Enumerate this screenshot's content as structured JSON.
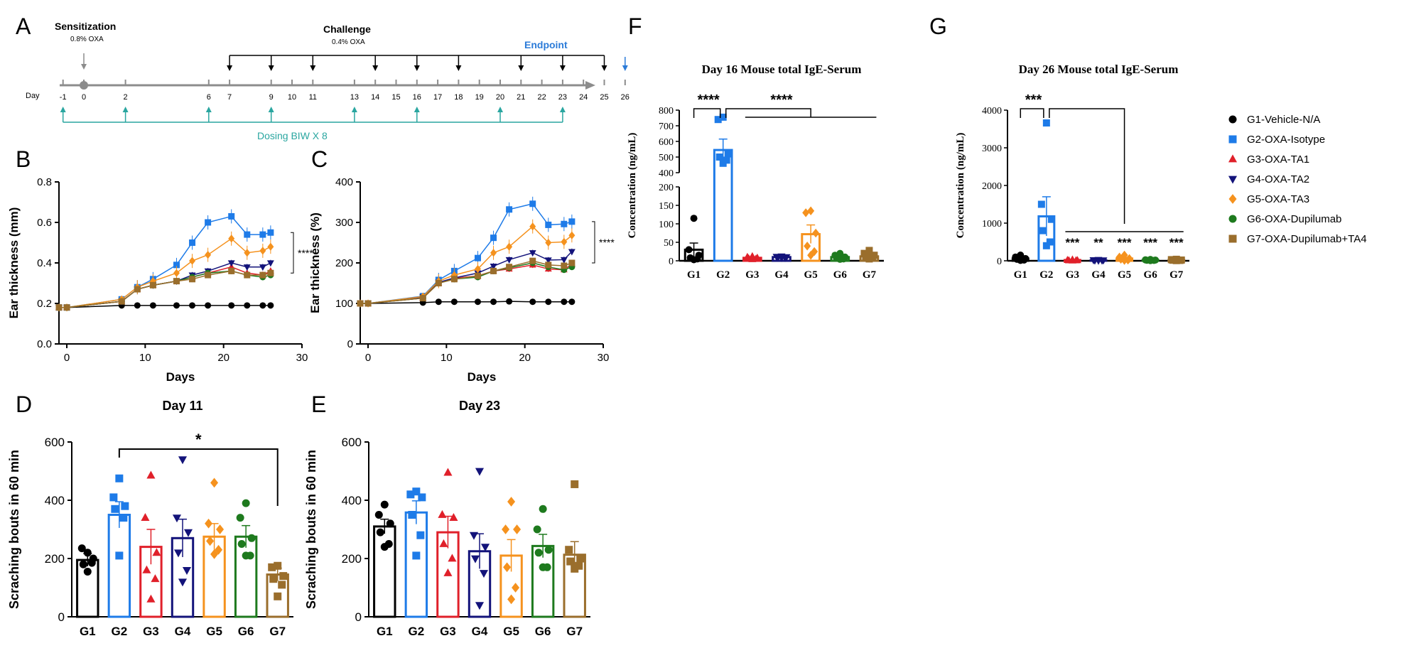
{
  "colors": {
    "G1": "#000000",
    "G2": "#1E7BE8",
    "G3": "#E0202A",
    "G4": "#13137A",
    "G5": "#F5921E",
    "G6": "#1E7A1E",
    "G7": "#9A6E2C",
    "timeline_gray": "#8C8C8C",
    "dosing": "#2AA6A0",
    "endpoint": "#2B7BD8"
  },
  "groups": [
    "G1",
    "G2",
    "G3",
    "G4",
    "G5",
    "G6",
    "G7"
  ],
  "legend": [
    {
      "label": "G1-Vehicle-N/A",
      "marker": "circle",
      "color": "#000000"
    },
    {
      "label": "G2-OXA-Isotype",
      "marker": "square",
      "color": "#1E7BE8"
    },
    {
      "label": "G3-OXA-TA1",
      "marker": "triangle-up",
      "color": "#E0202A"
    },
    {
      "label": "G4-OXA-TA2",
      "marker": "triangle-down",
      "color": "#13137A"
    },
    {
      "label": "G5-OXA-TA3",
      "marker": "diamond",
      "color": "#F5921E"
    },
    {
      "label": "G6-OXA-Dupilumab",
      "marker": "circle",
      "color": "#1E7A1E"
    },
    {
      "label": "G7-OXA-Dupilumab+TA4",
      "marker": "square",
      "color": "#9A6E2C"
    }
  ],
  "panel_letters": {
    "A": "A",
    "B": "B",
    "C": "C",
    "D": "D",
    "E": "E",
    "F": "F",
    "G": "G"
  },
  "panelA": {
    "sensitization": "Sensitization",
    "sensitization_dose": "0.8% OXA",
    "challenge": "Challenge",
    "challenge_dose": "0.4% OXA",
    "endpoint": "Endpoint",
    "day_label": "Day",
    "days": [
      "-1",
      "0",
      "2",
      "6",
      "7",
      "9",
      "10",
      "11",
      "13",
      "14",
      "15",
      "16",
      "17",
      "18",
      "19",
      "20",
      "21",
      "22",
      "23",
      "24",
      "25",
      "26"
    ],
    "challenge_days": [
      7,
      9,
      11,
      14,
      16,
      18,
      21,
      23,
      25
    ],
    "dosing_days": [
      -1,
      2,
      6,
      9,
      13,
      16,
      20,
      23
    ],
    "dosing_label": "Dosing BIW  X 8"
  },
  "chart_data": [
    {
      "id": "B",
      "type": "line",
      "xlabel": "Days",
      "ylabel": "Ear thickness (mm)",
      "xlim": [
        -1,
        30
      ],
      "ylim": [
        0,
        0.8
      ],
      "xticks": [
        0,
        10,
        20,
        30
      ],
      "yticks": [
        0.0,
        0.2,
        0.4,
        0.6,
        0.8
      ],
      "ytick_labels": [
        "0.0",
        "0.2",
        "0.4",
        "0.6",
        "0.8"
      ],
      "x": [
        -1,
        0,
        7,
        9,
        11,
        14,
        16,
        18,
        21,
        23,
        25,
        26
      ],
      "series": [
        {
          "group": "G1",
          "values": [
            0.18,
            0.18,
            0.19,
            0.19,
            0.19,
            0.19,
            0.19,
            0.19,
            0.19,
            0.19,
            0.19,
            0.19
          ]
        },
        {
          "group": "G2",
          "values": [
            0.18,
            0.18,
            0.22,
            0.28,
            0.32,
            0.39,
            0.5,
            0.6,
            0.63,
            0.54,
            0.54,
            0.55
          ]
        },
        {
          "group": "G3",
          "values": [
            0.18,
            0.18,
            0.21,
            0.27,
            0.29,
            0.31,
            0.33,
            0.35,
            0.38,
            0.35,
            0.34,
            0.36
          ]
        },
        {
          "group": "G4",
          "values": [
            0.18,
            0.18,
            0.21,
            0.27,
            0.29,
            0.31,
            0.34,
            0.36,
            0.4,
            0.38,
            0.38,
            0.4
          ]
        },
        {
          "group": "G5",
          "values": [
            0.18,
            0.18,
            0.22,
            0.28,
            0.31,
            0.35,
            0.41,
            0.44,
            0.52,
            0.45,
            0.46,
            0.48
          ]
        },
        {
          "group": "G6",
          "values": [
            0.18,
            0.18,
            0.21,
            0.27,
            0.29,
            0.31,
            0.33,
            0.35,
            0.36,
            0.34,
            0.33,
            0.34
          ]
        },
        {
          "group": "G7",
          "values": [
            0.18,
            0.18,
            0.21,
            0.27,
            0.29,
            0.31,
            0.32,
            0.34,
            0.36,
            0.34,
            0.34,
            0.35
          ]
        }
      ],
      "significance": "****"
    },
    {
      "id": "C",
      "type": "line",
      "xlabel": "Days",
      "ylabel": "Ear thickness (%)",
      "xlim": [
        -1,
        30
      ],
      "ylim": [
        0,
        400
      ],
      "xticks": [
        0,
        10,
        20,
        30
      ],
      "yticks": [
        0,
        100,
        200,
        300,
        400
      ],
      "ytick_labels": [
        "0",
        "100",
        "200",
        "300",
        "400"
      ],
      "x": [
        -1,
        0,
        7,
        9,
        11,
        14,
        16,
        18,
        21,
        23,
        25,
        26
      ],
      "series": [
        {
          "group": "G1",
          "values": [
            100,
            100,
            102,
            104,
            104,
            104,
            104,
            105,
            104,
            104,
            104,
            104
          ]
        },
        {
          "group": "G2",
          "values": [
            100,
            100,
            118,
            158,
            180,
            212,
            262,
            332,
            346,
            294,
            296,
            302
          ]
        },
        {
          "group": "G3",
          "values": [
            100,
            100,
            113,
            150,
            162,
            168,
            180,
            185,
            195,
            185,
            183,
            197
          ]
        },
        {
          "group": "G4",
          "values": [
            100,
            100,
            116,
            152,
            163,
            175,
            192,
            208,
            225,
            207,
            208,
            228
          ]
        },
        {
          "group": "G5",
          "values": [
            100,
            100,
            117,
            155,
            170,
            185,
            225,
            240,
            290,
            250,
            252,
            268
          ]
        },
        {
          "group": "G6",
          "values": [
            100,
            100,
            113,
            150,
            160,
            165,
            180,
            188,
            200,
            190,
            183,
            190
          ]
        },
        {
          "group": "G7",
          "values": [
            100,
            100,
            113,
            150,
            160,
            168,
            180,
            190,
            205,
            195,
            193,
            200
          ]
        }
      ],
      "significance": "****"
    },
    {
      "id": "D",
      "type": "bar",
      "title": "Day 11",
      "ylabel": "Scraching bouts  in 60 min",
      "categories": [
        "G1",
        "G2",
        "G3",
        "G4",
        "G5",
        "G6",
        "G7"
      ],
      "values": [
        195,
        350,
        240,
        270,
        275,
        275,
        145
      ],
      "errors": [
        22,
        45,
        60,
        65,
        45,
        38,
        22
      ],
      "points": [
        [
          220,
          235,
          200,
          180,
          185,
          155
        ],
        [
          475,
          410,
          380,
          370,
          340,
          210
        ],
        [
          485,
          340,
          220,
          160,
          130,
          60
        ],
        [
          540,
          340,
          290,
          220,
          160,
          120
        ],
        [
          460,
          320,
          300,
          260,
          230,
          215
        ],
        [
          390,
          340,
          270,
          250,
          210,
          210
        ],
        [
          175,
          170,
          140,
          130,
          110,
          70
        ]
      ],
      "ylim": [
        0,
        600
      ],
      "yticks": [
        0,
        200,
        400,
        600
      ],
      "significance": "*"
    },
    {
      "id": "E",
      "type": "bar",
      "title": "Day 23",
      "ylabel": "Scraching bouts  in 60 min",
      "categories": [
        "G1",
        "G2",
        "G3",
        "G4",
        "G5",
        "G6",
        "G7"
      ],
      "values": [
        310,
        358,
        290,
        225,
        210,
        243,
        213
      ],
      "errors": [
        25,
        40,
        55,
        60,
        55,
        40,
        45
      ],
      "points": [
        [
          385,
          350,
          320,
          290,
          250,
          240
        ],
        [
          430,
          420,
          410,
          350,
          280,
          210
        ],
        [
          495,
          350,
          340,
          250,
          200,
          150
        ],
        [
          500,
          280,
          240,
          200,
          150,
          40
        ],
        [
          395,
          300,
          300,
          170,
          100,
          60
        ],
        [
          370,
          300,
          230,
          220,
          170,
          170
        ],
        [
          455,
          230,
          200,
          190,
          175,
          165
        ]
      ],
      "ylim": [
        0,
        600
      ],
      "yticks": [
        0,
        200,
        400,
        600
      ]
    },
    {
      "id": "F",
      "type": "bar",
      "title": "Day 16 Mouse total IgE-Serum",
      "ylabel": "Concentration (ng/mL)",
      "categories": [
        "G1",
        "G2",
        "G3",
        "G4",
        "G5",
        "G6",
        "G7"
      ],
      "values": [
        30,
        545,
        8,
        10,
        72,
        10,
        12
      ],
      "errors": [
        18,
        70,
        3,
        2,
        25,
        5,
        6
      ],
      "points": [
        [
          115,
          30,
          15,
          8,
          5,
          3
        ],
        [
          755,
          740,
          520,
          500,
          480,
          460
        ],
        [
          12,
          10,
          8,
          6,
          5,
          4
        ],
        [
          12,
          11,
          10,
          9,
          8,
          8
        ],
        [
          135,
          130,
          75,
          40,
          25,
          15
        ],
        [
          20,
          15,
          10,
          8,
          5,
          4
        ],
        [
          28,
          20,
          15,
          10,
          8,
          5
        ]
      ],
      "yticks": [
        0,
        50,
        100,
        150,
        200,
        400,
        500,
        600,
        700,
        800
      ],
      "ylim": [
        0,
        800
      ],
      "significance": [
        "****",
        "****"
      ]
    },
    {
      "id": "G",
      "type": "bar",
      "title": "Day 26 Mouse total IgE-Serum",
      "ylabel": "Concentration (ng/mL)",
      "categories": [
        "G1",
        "G2",
        "G3",
        "G4",
        "G5",
        "G6",
        "G7"
      ],
      "values": [
        60,
        1180,
        20,
        15,
        60,
        20,
        20
      ],
      "errors": [
        30,
        520,
        5,
        5,
        30,
        8,
        8
      ],
      "points": [
        [
          150,
          100,
          60,
          40,
          20,
          10
        ],
        [
          3660,
          1500,
          1100,
          800,
          500,
          400
        ],
        [
          30,
          20,
          15,
          10,
          10,
          5
        ],
        [
          25,
          20,
          15,
          10,
          10,
          5
        ],
        [
          150,
          100,
          60,
          40,
          20,
          10
        ],
        [
          35,
          25,
          20,
          15,
          10,
          5
        ],
        [
          40,
          30,
          20,
          15,
          10,
          5
        ]
      ],
      "ylim": [
        0,
        4000
      ],
      "yticks": [
        0,
        1000,
        2000,
        3000,
        4000
      ],
      "significance": [
        "***",
        "***",
        "***",
        "**",
        "***",
        "***",
        "***"
      ],
      "significance_top": "***"
    }
  ]
}
